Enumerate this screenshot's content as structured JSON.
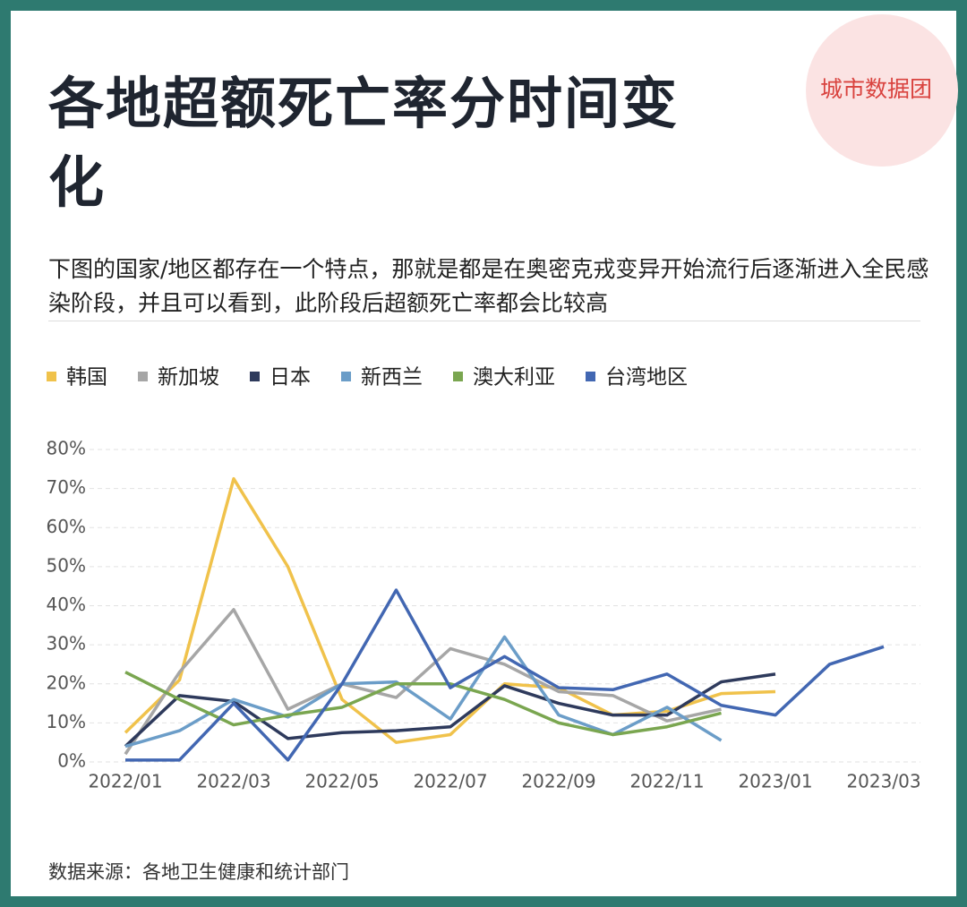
{
  "chart_data": {
    "type": "line",
    "title": "各地超额死亡率分时间变化",
    "subtitle": "下图的国家/地区都存在一个特点，那就是都是在奥密克戎变异开始流行后逐渐进入全民感染阶段，并且可以看到，此阶段后超额死亡率都会比较高",
    "brand": "城市数据团",
    "source": "数据来源：各地卫生健康和统计部门",
    "categories": [
      "2022/01",
      null,
      "2022/03",
      null,
      "2022/05",
      null,
      "2022/07",
      null,
      "2022/09",
      null,
      "2022/11",
      null,
      "2023/01",
      null,
      "2023/03"
    ],
    "series": [
      {
        "name": "韩国",
        "color": "#f0c24b",
        "values": [
          7.5,
          21,
          72.5,
          50,
          16,
          5,
          7,
          20,
          19,
          12,
          13,
          17.5,
          18,
          null,
          null
        ]
      },
      {
        "name": "新加坡",
        "color": "#a6a6a6",
        "values": [
          2,
          23,
          39,
          13.5,
          20,
          16.5,
          29,
          25,
          18,
          17,
          10.5,
          13.5,
          null,
          null,
          null
        ]
      },
      {
        "name": "日本",
        "color": "#2e3a5c",
        "values": [
          4,
          17,
          15.5,
          6,
          7.5,
          8,
          9,
          19.5,
          15,
          12,
          12,
          20.5,
          22.5,
          null,
          null
        ]
      },
      {
        "name": "新西兰",
        "color": "#6b9dc8",
        "values": [
          4,
          8,
          16,
          11.5,
          20,
          20.5,
          11,
          32,
          12,
          7,
          14,
          5.5,
          null,
          null,
          null
        ]
      },
      {
        "name": "澳大利亚",
        "color": "#7aa650",
        "values": [
          23,
          16,
          9.5,
          12,
          14,
          20,
          20,
          16,
          10,
          7,
          9,
          12.5,
          null,
          null,
          null
        ]
      },
      {
        "name": "台湾地区",
        "color": "#4267b2",
        "values": [
          0.5,
          0.5,
          15,
          0.5,
          20,
          44,
          19,
          27,
          19,
          18.5,
          22.5,
          14.5,
          12,
          25,
          29.5
        ]
      }
    ],
    "ylim": [
      0,
      80
    ],
    "yticks": [
      {
        "value": 0,
        "label": "0%"
      },
      {
        "value": 10,
        "label": "10%"
      },
      {
        "value": 20,
        "label": "20%"
      },
      {
        "value": 30,
        "label": "30%"
      },
      {
        "value": 40,
        "label": "40%"
      },
      {
        "value": 50,
        "label": "50%"
      },
      {
        "value": 60,
        "label": "60%"
      },
      {
        "value": 70,
        "label": "70%"
      },
      {
        "value": 80,
        "label": "80%"
      }
    ],
    "grid": true,
    "legend": "top"
  }
}
